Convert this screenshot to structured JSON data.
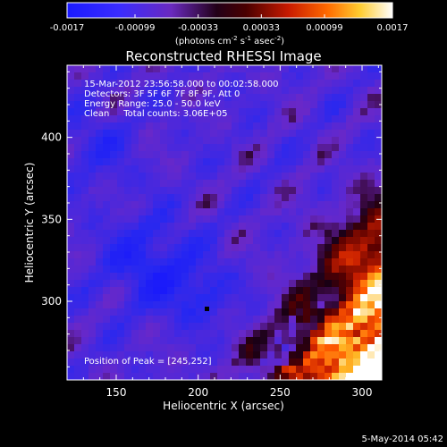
{
  "chart_data": {
    "type": "heatmap",
    "title": "Reconstructed RHESSI Image",
    "xlabel": "Heliocentric X (arcsec)",
    "ylabel": "Heliocentric Y (arcsec)",
    "xlim": [
      120,
      312
    ],
    "ylim": [
      252,
      444
    ],
    "x_ticks": [
      150,
      200,
      250,
      300
    ],
    "y_ticks": [
      300,
      350,
      400
    ],
    "colorbar": {
      "ticks": [
        "-0.0017",
        "-0.00099",
        "-0.00033",
        "0.00033",
        "0.00099",
        "0.0017"
      ],
      "range": [
        -0.0017,
        0.0017
      ],
      "units_text": "(photons cm",
      "units_sup1": "-2",
      "units_mid": " s",
      "units_sup2": "-1",
      "units_mid2": " asec",
      "units_sup3": "-2",
      "units_end": ")"
    },
    "annotations": {
      "time_range": "15-Mar-2012 23:56:58.000 to 00:02:58.000",
      "detectors": "Detectors: 3F 5F 6F 7F 8F 9F, Att 0",
      "energy": "Energy Range: 25.0 - 50.0 keV",
      "clean": "Clean     Total counts: 3.06E+05",
      "peak": "Position of Peak = [245,252]"
    },
    "peak_position": [
      245,
      252
    ],
    "footer_date": "5-May-2014 05:42"
  }
}
